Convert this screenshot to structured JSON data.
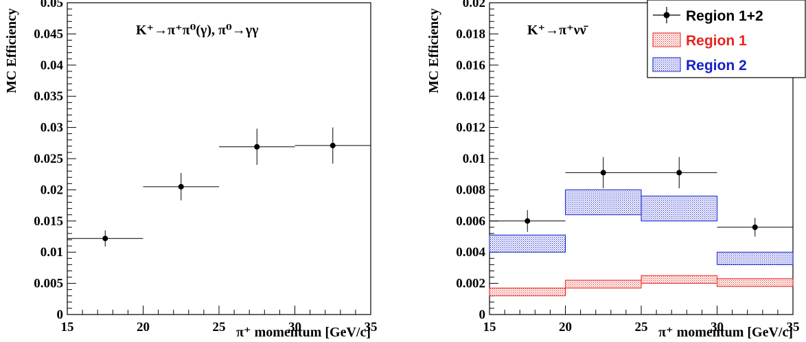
{
  "chart_data": [
    {
      "type": "scatter",
      "title": "",
      "process_label": "K⁺→π⁺π⁰(γ),  π⁰→γγ",
      "xlabel": "π⁺ momentum [GeV/c]",
      "ylabel": "MC Efficiency",
      "xlim": [
        15,
        35
      ],
      "ylim": [
        0,
        0.05
      ],
      "x_ticks": [
        "15",
        "20",
        "25",
        "30",
        "35"
      ],
      "y_ticks": [
        "0",
        "0.005",
        "0.01",
        "0.015",
        "0.02",
        "0.025",
        "0.03",
        "0.035",
        "0.04",
        "0.045",
        "0.05"
      ],
      "grid": false,
      "series": [
        {
          "color": "#000000",
          "points": [
            {
              "x_low": 15,
              "x_high": 20,
              "x": 17.5,
              "y": 0.0122,
              "err": 0.0013
            },
            {
              "x_low": 20,
              "x_high": 25,
              "x": 22.5,
              "y": 0.0205,
              "err": 0.0022
            },
            {
              "x_low": 25,
              "x_high": 30,
              "x": 27.5,
              "y": 0.0269,
              "err": 0.0029
            },
            {
              "x_low": 30,
              "x_high": 35,
              "x": 32.5,
              "y": 0.0271,
              "err": 0.0029
            }
          ]
        }
      ]
    },
    {
      "type": "scatter",
      "title": "",
      "process_label": "K⁺→π⁺νν̄",
      "xlabel": "π⁺ momentum [GeV/c]",
      "ylabel": "MC Efficiency",
      "xlim": [
        15,
        35
      ],
      "ylim": [
        0,
        0.02
      ],
      "x_ticks": [
        "15",
        "20",
        "25",
        "30",
        "35"
      ],
      "y_ticks": [
        "0",
        "0.002",
        "0.004",
        "0.006",
        "0.008",
        "0.01",
        "0.012",
        "0.014",
        "0.016",
        "0.018",
        "0.02"
      ],
      "grid": false,
      "legend_position": "top-right",
      "series": [
        {
          "name": "Region 1+2",
          "color": "#000000",
          "style": "points",
          "points": [
            {
              "x_low": 15,
              "x_high": 20,
              "x": 17.5,
              "y": 0.006,
              "err": 0.0007
            },
            {
              "x_low": 20,
              "x_high": 25,
              "x": 22.5,
              "y": 0.0091,
              "err": 0.001
            },
            {
              "x_low": 25,
              "x_high": 30,
              "x": 27.5,
              "y": 0.0091,
              "err": 0.001
            },
            {
              "x_low": 30,
              "x_high": 35,
              "x": 32.5,
              "y": 0.0056,
              "err": 0.0006
            }
          ]
        },
        {
          "name": "Region 1",
          "color": "#e8231b",
          "style": "band",
          "bands": [
            {
              "x_low": 15,
              "x_high": 20,
              "y_low": 0.0012,
              "y_high": 0.0017
            },
            {
              "x_low": 20,
              "x_high": 25,
              "y_low": 0.0017,
              "y_high": 0.0022
            },
            {
              "x_low": 25,
              "x_high": 30,
              "y_low": 0.002,
              "y_high": 0.0025
            },
            {
              "x_low": 30,
              "x_high": 35,
              "y_low": 0.0018,
              "y_high": 0.0023
            }
          ]
        },
        {
          "name": "Region 2",
          "color": "#1520c9",
          "style": "band",
          "bands": [
            {
              "x_low": 15,
              "x_high": 20,
              "y_low": 0.004,
              "y_high": 0.0051
            },
            {
              "x_low": 20,
              "x_high": 25,
              "y_low": 0.0064,
              "y_high": 0.008
            },
            {
              "x_low": 25,
              "x_high": 30,
              "y_low": 0.006,
              "y_high": 0.0076
            },
            {
              "x_low": 30,
              "x_high": 35,
              "y_low": 0.0032,
              "y_high": 0.004
            }
          ]
        }
      ]
    }
  ]
}
